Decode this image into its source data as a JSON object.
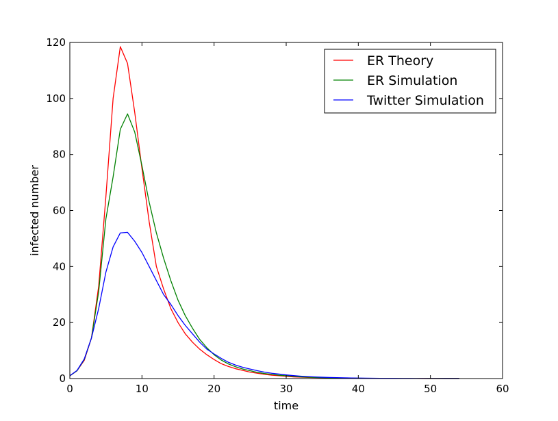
{
  "chart_data": {
    "type": "line",
    "title": "",
    "xlabel": "time",
    "ylabel": "infected number",
    "xlim": [
      0,
      60
    ],
    "ylim": [
      0,
      120
    ],
    "xticks": [
      0,
      10,
      20,
      30,
      40,
      50,
      60
    ],
    "yticks": [
      0,
      20,
      40,
      60,
      80,
      100,
      120
    ],
    "grid": false,
    "legend_position": "top-right",
    "x": [
      0,
      1,
      2,
      3,
      4,
      5,
      6,
      7,
      8,
      9,
      10,
      11,
      12,
      13,
      14,
      15,
      16,
      17,
      18,
      19,
      20,
      21,
      22,
      23,
      24,
      25,
      26,
      27,
      28,
      29,
      30,
      31,
      32,
      33,
      34,
      35,
      36,
      37,
      38,
      39,
      40,
      41,
      42,
      43,
      44,
      45,
      46,
      47,
      48,
      49,
      50,
      51,
      52,
      53,
      54
    ],
    "series": [
      {
        "name": "ER Theory",
        "color": "#ff0000",
        "values": [
          1.0,
          2.8,
          6.5,
          14.5,
          33,
          65,
          100,
          118.5,
          112.5,
          95,
          75,
          56,
          40,
          32,
          25,
          20,
          16,
          13,
          10.5,
          8.5,
          6.8,
          5.3,
          4.3,
          3.5,
          2.9,
          2.3,
          1.9,
          1.5,
          1.2,
          1.0,
          0.8,
          0.6,
          0.5,
          0.4,
          0.35,
          0.3,
          0.25,
          0.2,
          0.15,
          0.12,
          0.1,
          0.08,
          0.07,
          0.06,
          0.05,
          0.04,
          0.035,
          0.03,
          0.025,
          0.02,
          0.018,
          0.015,
          0.013,
          0.011,
          0.01
        ]
      },
      {
        "name": "ER Simulation",
        "color": "#008000",
        "values": [
          1.0,
          2.8,
          6.8,
          14.5,
          31,
          57,
          72,
          89,
          94.5,
          88,
          76,
          63,
          52,
          43,
          35,
          28,
          22.5,
          18,
          14,
          11,
          8.5,
          6.6,
          5.2,
          4.2,
          3.4,
          2.8,
          2.2,
          1.8,
          1.5,
          1.2,
          1.0,
          0.8,
          0.6,
          0.5,
          0.4,
          0.33,
          0.27,
          0.22,
          0.18,
          0.15,
          0.12,
          0.1,
          0.08,
          0.07,
          0.06,
          0.05,
          0.04,
          0.035,
          0.03,
          0.025,
          0.02,
          0.018,
          0.015,
          0.012,
          0.01
        ]
      },
      {
        "name": "Twitter Simulation",
        "color": "#0000ff",
        "values": [
          1.0,
          2.9,
          7.0,
          14.5,
          25,
          38,
          47,
          52,
          52.2,
          49,
          45,
          40,
          35,
          30,
          26.5,
          22.5,
          19,
          16,
          13,
          10.5,
          8.8,
          7.2,
          5.8,
          4.8,
          4.0,
          3.4,
          2.8,
          2.3,
          1.9,
          1.6,
          1.3,
          1.05,
          0.85,
          0.7,
          0.58,
          0.48,
          0.4,
          0.33,
          0.27,
          0.22,
          0.18,
          0.15,
          0.12,
          0.1,
          0.08,
          0.07,
          0.06,
          0.05,
          0.04,
          0.035,
          0.03,
          0.025,
          0.02,
          0.015,
          0.01
        ]
      }
    ]
  }
}
